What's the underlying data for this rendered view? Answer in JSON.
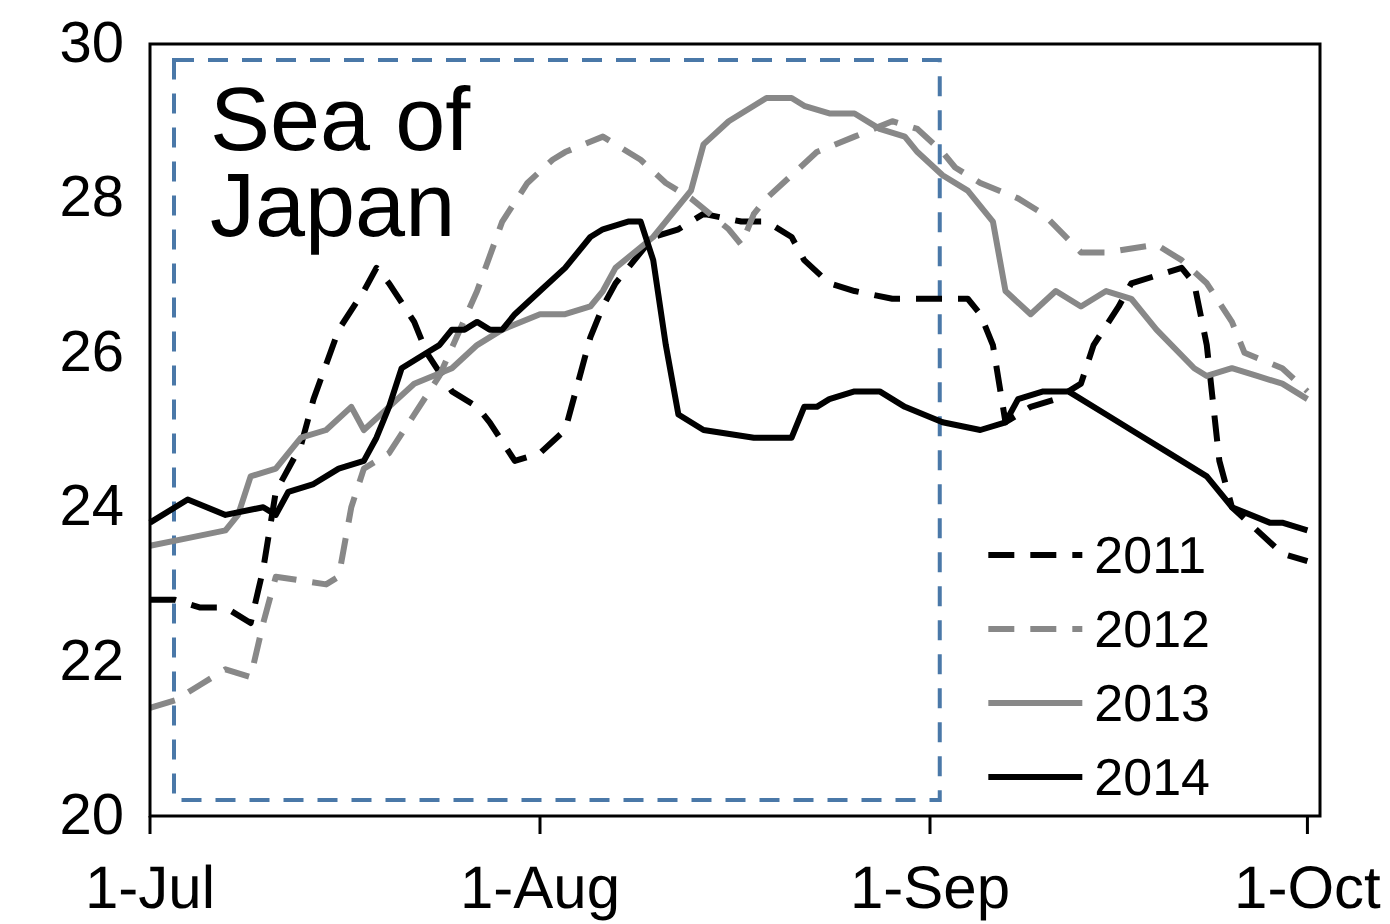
{
  "chart_data": {
    "type": "line",
    "title": "Sea of Japan",
    "xlim": [
      "--07-01",
      "--10-02"
    ],
    "xticks": [
      {
        "value": "--07-01",
        "label": "1-Jul"
      },
      {
        "value": "--08-01",
        "label": "1-Aug"
      },
      {
        "value": "--09-01",
        "label": "1-Sep"
      },
      {
        "value": "--10-01",
        "label": "1-Oct"
      }
    ],
    "ylim": [
      20,
      30
    ],
    "yticks": [
      20,
      22,
      24,
      26,
      28,
      30
    ],
    "legend": "bottom right",
    "series": [
      {
        "name": "2011",
        "color": "#000000",
        "line_style": "dashed",
        "x": [
          "--07-01",
          "--07-03",
          "--07-05",
          "--07-07",
          "--07-09",
          "--07-10",
          "--07-11",
          "--07-13",
          "--07-14",
          "--07-16",
          "--07-18",
          "--07-19",
          "--07-20",
          "--07-22",
          "--07-23",
          "--07-25",
          "--07-27",
          "--07-28",
          "--07-30",
          "--08-01",
          "--08-03",
          "--08-04",
          "--08-05",
          "--08-06",
          "--08-07",
          "--08-10",
          "--08-12",
          "--08-14",
          "--08-17",
          "--08-19",
          "--08-21",
          "--08-22",
          "--08-24",
          "--08-26",
          "--08-29",
          "--08-31",
          "--09-04",
          "--09-05",
          "--09-06",
          "--09-07",
          "--09-09",
          "--09-11",
          "--09-13",
          "--09-14",
          "--09-16",
          "--09-17",
          "--09-19",
          "--09-21",
          "--09-22",
          "--09-23",
          "--09-24",
          "--09-25",
          "--09-27",
          "--09-29",
          "--10-01"
        ],
        "values": [
          22.8,
          22.8,
          22.7,
          22.7,
          22.5,
          23.2,
          24.2,
          24.8,
          25.4,
          26.3,
          26.8,
          27.1,
          26.9,
          26.4,
          26.0,
          25.5,
          25.3,
          25.1,
          24.6,
          24.7,
          25.0,
          25.6,
          26.2,
          26.6,
          26.9,
          27.5,
          27.6,
          27.8,
          27.7,
          27.7,
          27.5,
          27.2,
          26.9,
          26.8,
          26.7,
          26.7,
          26.7,
          26.5,
          26.1,
          25.1,
          25.3,
          25.4,
          25.6,
          26.1,
          26.6,
          26.9,
          27.0,
          27.1,
          26.9,
          26.1,
          24.6,
          24.0,
          23.7,
          23.4,
          23.3
        ]
      },
      {
        "name": "2012",
        "color": "#888888",
        "line_style": "dashed",
        "x": [
          "--07-01",
          "--07-03",
          "--07-05",
          "--07-07",
          "--07-09",
          "--07-10",
          "--07-11",
          "--07-15",
          "--07-16",
          "--07-17",
          "--07-18",
          "--07-20",
          "--07-22",
          "--07-24",
          "--07-27",
          "--07-29",
          "--07-31",
          "--08-02",
          "--08-03",
          "--08-06",
          "--08-07",
          "--08-09",
          "--08-11",
          "--08-13",
          "--08-16",
          "--08-17",
          "--08-18",
          "--08-19",
          "--08-21",
          "--08-23",
          "--08-26",
          "--08-29",
          "--08-31",
          "--09-02",
          "--09-03",
          "--09-05",
          "--09-08",
          "--09-10",
          "--09-13",
          "--09-15",
          "--09-19",
          "--09-21",
          "--09-23",
          "--09-25",
          "--09-26",
          "--09-29",
          "--10-01"
        ],
        "values": [
          21.4,
          21.5,
          21.7,
          21.9,
          21.8,
          22.5,
          23.1,
          23.0,
          23.1,
          24.0,
          24.5,
          24.7,
          25.2,
          25.7,
          26.8,
          27.7,
          28.2,
          28.5,
          28.6,
          28.8,
          28.7,
          28.5,
          28.2,
          28.0,
          27.6,
          27.4,
          27.8,
          28.0,
          28.3,
          28.6,
          28.8,
          29.0,
          28.9,
          28.6,
          28.4,
          28.2,
          28.0,
          27.8,
          27.3,
          27.3,
          27.4,
          27.2,
          26.9,
          26.4,
          26.0,
          25.8,
          25.5
        ]
      },
      {
        "name": "2013",
        "color": "#888888",
        "line_style": "solid",
        "x": [
          "--07-01",
          "--07-04",
          "--07-07",
          "--07-08",
          "--07-09",
          "--07-11",
          "--07-13",
          "--07-15",
          "--07-17",
          "--07-18",
          "--07-20",
          "--07-22",
          "--07-25",
          "--07-27",
          "--07-29",
          "--08-01",
          "--08-03",
          "--08-05",
          "--08-06",
          "--08-07",
          "--08-10",
          "--08-13",
          "--08-14",
          "--08-16",
          "--08-18",
          "--08-19",
          "--08-21",
          "--08-22",
          "--08-24",
          "--08-26",
          "--08-28",
          "--08-30",
          "--08-31",
          "--09-02",
          "--09-04",
          "--09-06",
          "--09-07",
          "--09-09",
          "--09-11",
          "--09-13",
          "--09-15",
          "--09-17",
          "--09-19",
          "--09-22",
          "--09-23",
          "--09-25",
          "--09-27",
          "--09-29",
          "--10-01"
        ],
        "values": [
          23.5,
          23.6,
          23.7,
          23.9,
          24.4,
          24.5,
          24.9,
          25.0,
          25.3,
          25.0,
          25.3,
          25.6,
          25.8,
          26.1,
          26.3,
          26.5,
          26.5,
          26.6,
          26.8,
          27.1,
          27.5,
          28.1,
          28.7,
          29.0,
          29.2,
          29.3,
          29.3,
          29.2,
          29.1,
          29.1,
          28.9,
          28.8,
          28.6,
          28.3,
          28.1,
          27.7,
          26.8,
          26.5,
          26.8,
          26.6,
          26.8,
          26.7,
          26.3,
          25.8,
          25.7,
          25.8,
          25.7,
          25.6,
          25.4
        ]
      },
      {
        "name": "2014",
        "color": "#000000",
        "line_style": "solid",
        "x": [
          "--07-01",
          "--07-04",
          "--07-07",
          "--07-10",
          "--07-11",
          "--07-12",
          "--07-14",
          "--07-16",
          "--07-18",
          "--07-19",
          "--07-20",
          "--07-21",
          "--07-22",
          "--07-23",
          "--07-24",
          "--07-25",
          "--07-26",
          "--07-27",
          "--07-28",
          "--07-29",
          "--07-30",
          "--08-01",
          "--08-03",
          "--08-05",
          "--08-06",
          "--08-08",
          "--08-09",
          "--08-10",
          "--08-11",
          "--08-12",
          "--08-14",
          "--08-18",
          "--08-19",
          "--08-21",
          "--08-22",
          "--08-23",
          "--08-24",
          "--08-26",
          "--08-28",
          "--08-30",
          "--09-02",
          "--09-05",
          "--09-07",
          "--09-08",
          "--09-10",
          "--09-12",
          "--09-15",
          "--09-17",
          "--09-20",
          "--09-23",
          "--09-25",
          "--09-28",
          "--09-29",
          "--10-01"
        ],
        "values": [
          23.8,
          24.1,
          23.9,
          24.0,
          23.9,
          24.2,
          24.3,
          24.5,
          24.6,
          24.9,
          25.3,
          25.8,
          25.9,
          26.0,
          26.1,
          26.3,
          26.3,
          26.4,
          26.3,
          26.3,
          26.5,
          26.8,
          27.1,
          27.5,
          27.6,
          27.7,
          27.7,
          27.2,
          26.1,
          25.2,
          25.0,
          24.9,
          24.9,
          24.9,
          25.3,
          25.3,
          25.4,
          25.5,
          25.5,
          25.3,
          25.1,
          25.0,
          25.1,
          25.4,
          25.5,
          25.5,
          25.2,
          25.0,
          24.7,
          24.4,
          24.0,
          23.8,
          23.8,
          23.7
        ]
      }
    ]
  }
}
